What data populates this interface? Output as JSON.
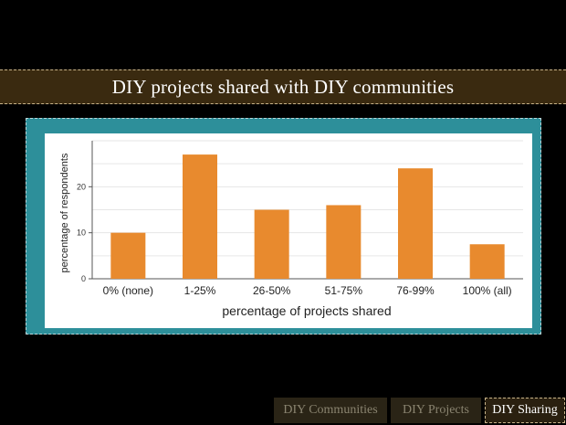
{
  "slide": {
    "title": "DIY projects shared with DIY communities"
  },
  "nav": {
    "tabs": [
      {
        "label": "DIY Communities",
        "active": false
      },
      {
        "label": "DIY Projects",
        "active": false
      },
      {
        "label": "DIY Sharing",
        "active": true
      }
    ]
  },
  "colors": {
    "bar": "#e88a2e",
    "frame": "#2d8f9a",
    "title_bar": "#3a2a10"
  },
  "chart_data": {
    "type": "bar",
    "categories": [
      "0% (none)",
      "1-25%",
      "26-50%",
      "51-75%",
      "76-99%",
      "100% (all)"
    ],
    "values": [
      10,
      27,
      15,
      16,
      24,
      7.5
    ],
    "title": "",
    "xlabel": "percentage of projects shared",
    "ylabel": "percentage of respondents",
    "ylim": [
      0,
      30
    ],
    "yticks": [
      0,
      10,
      20
    ],
    "grid": true
  }
}
